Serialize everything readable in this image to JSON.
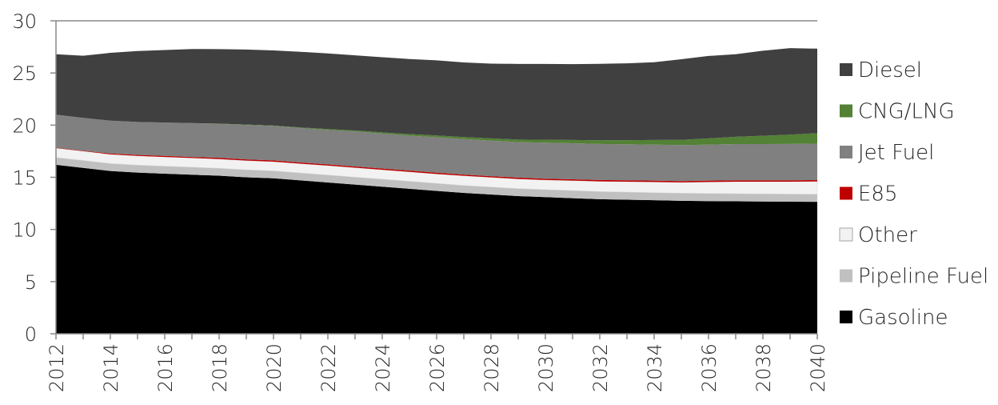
{
  "chart_data": {
    "type": "area",
    "stacked": true,
    "title": "",
    "xlabel": "",
    "ylabel": "",
    "x": [
      2012,
      2013,
      2014,
      2015,
      2016,
      2017,
      2018,
      2019,
      2020,
      2021,
      2022,
      2023,
      2024,
      2025,
      2026,
      2027,
      2028,
      2029,
      2030,
      2031,
      2032,
      2033,
      2034,
      2035,
      2036,
      2037,
      2038,
      2039,
      2040
    ],
    "x_tick_labels": [
      "2012",
      "2014",
      "2016",
      "2018",
      "2020",
      "2022",
      "2024",
      "2026",
      "2028",
      "2030",
      "2032",
      "2034",
      "2036",
      "2038",
      "2040"
    ],
    "y_tick_labels": [
      "0",
      "5",
      "10",
      "15",
      "20",
      "25",
      "30"
    ],
    "ylim": [
      0,
      30
    ],
    "grid": false,
    "legend_position": "right",
    "series": [
      {
        "name": "Gasoline",
        "color": "#000000",
        "values": [
          16.2,
          15.9,
          15.6,
          15.45,
          15.35,
          15.25,
          15.15,
          15.0,
          14.9,
          14.7,
          14.5,
          14.3,
          14.1,
          13.9,
          13.7,
          13.5,
          13.35,
          13.2,
          13.1,
          13.0,
          12.9,
          12.85,
          12.8,
          12.75,
          12.72,
          12.7,
          12.68,
          12.66,
          12.65
        ]
      },
      {
        "name": "Pipeline Fuel",
        "color": "#c0c0c0",
        "values": [
          0.7,
          0.72,
          0.72,
          0.72,
          0.72,
          0.72,
          0.72,
          0.72,
          0.72,
          0.72,
          0.72,
          0.72,
          0.72,
          0.72,
          0.72,
          0.72,
          0.72,
          0.72,
          0.72,
          0.73,
          0.73,
          0.73,
          0.73,
          0.73,
          0.73,
          0.73,
          0.73,
          0.73,
          0.73
        ]
      },
      {
        "name": "Other",
        "color": "#f2f2f2",
        "values": [
          0.9,
          0.88,
          0.88,
          0.88,
          0.88,
          0.88,
          0.88,
          0.88,
          0.88,
          0.88,
          0.9,
          0.9,
          0.9,
          0.9,
          0.9,
          0.92,
          0.92,
          0.92,
          0.92,
          0.95,
          0.98,
          1.0,
          1.02,
          1.03,
          1.1,
          1.15,
          1.17,
          1.19,
          1.22
        ]
      },
      {
        "name": "E85",
        "color": "#c00000",
        "values": [
          0.05,
          0.05,
          0.08,
          0.1,
          0.1,
          0.1,
          0.12,
          0.12,
          0.12,
          0.12,
          0.12,
          0.12,
          0.12,
          0.12,
          0.12,
          0.12,
          0.12,
          0.13,
          0.13,
          0.13,
          0.13,
          0.13,
          0.13,
          0.13,
          0.13,
          0.13,
          0.13,
          0.13,
          0.13
        ]
      },
      {
        "name": "Jet Fuel",
        "color": "#808080",
        "values": [
          3.15,
          3.15,
          3.15,
          3.15,
          3.2,
          3.25,
          3.25,
          3.3,
          3.3,
          3.3,
          3.3,
          3.35,
          3.35,
          3.35,
          3.4,
          3.4,
          3.4,
          3.4,
          3.45,
          3.45,
          3.45,
          3.45,
          3.45,
          3.45,
          3.45,
          3.47,
          3.47,
          3.48,
          3.5
        ]
      },
      {
        "name": "CNG/LNG",
        "color": "#538135",
        "values": [
          0.0,
          0.0,
          0.0,
          0.0,
          0.0,
          0.0,
          0.02,
          0.03,
          0.04,
          0.06,
          0.08,
          0.1,
          0.12,
          0.15,
          0.17,
          0.2,
          0.22,
          0.25,
          0.28,
          0.32,
          0.36,
          0.4,
          0.45,
          0.5,
          0.6,
          0.7,
          0.8,
          0.9,
          1.0
        ]
      },
      {
        "name": "Diesel",
        "color": "#404040",
        "values": [
          5.8,
          5.95,
          6.5,
          6.8,
          6.95,
          7.1,
          7.15,
          7.2,
          7.2,
          7.25,
          7.25,
          7.2,
          7.2,
          7.2,
          7.2,
          7.15,
          7.17,
          7.25,
          7.27,
          7.27,
          7.33,
          7.36,
          7.45,
          7.73,
          7.9,
          7.92,
          8.15,
          8.29,
          8.1
        ]
      }
    ]
  }
}
